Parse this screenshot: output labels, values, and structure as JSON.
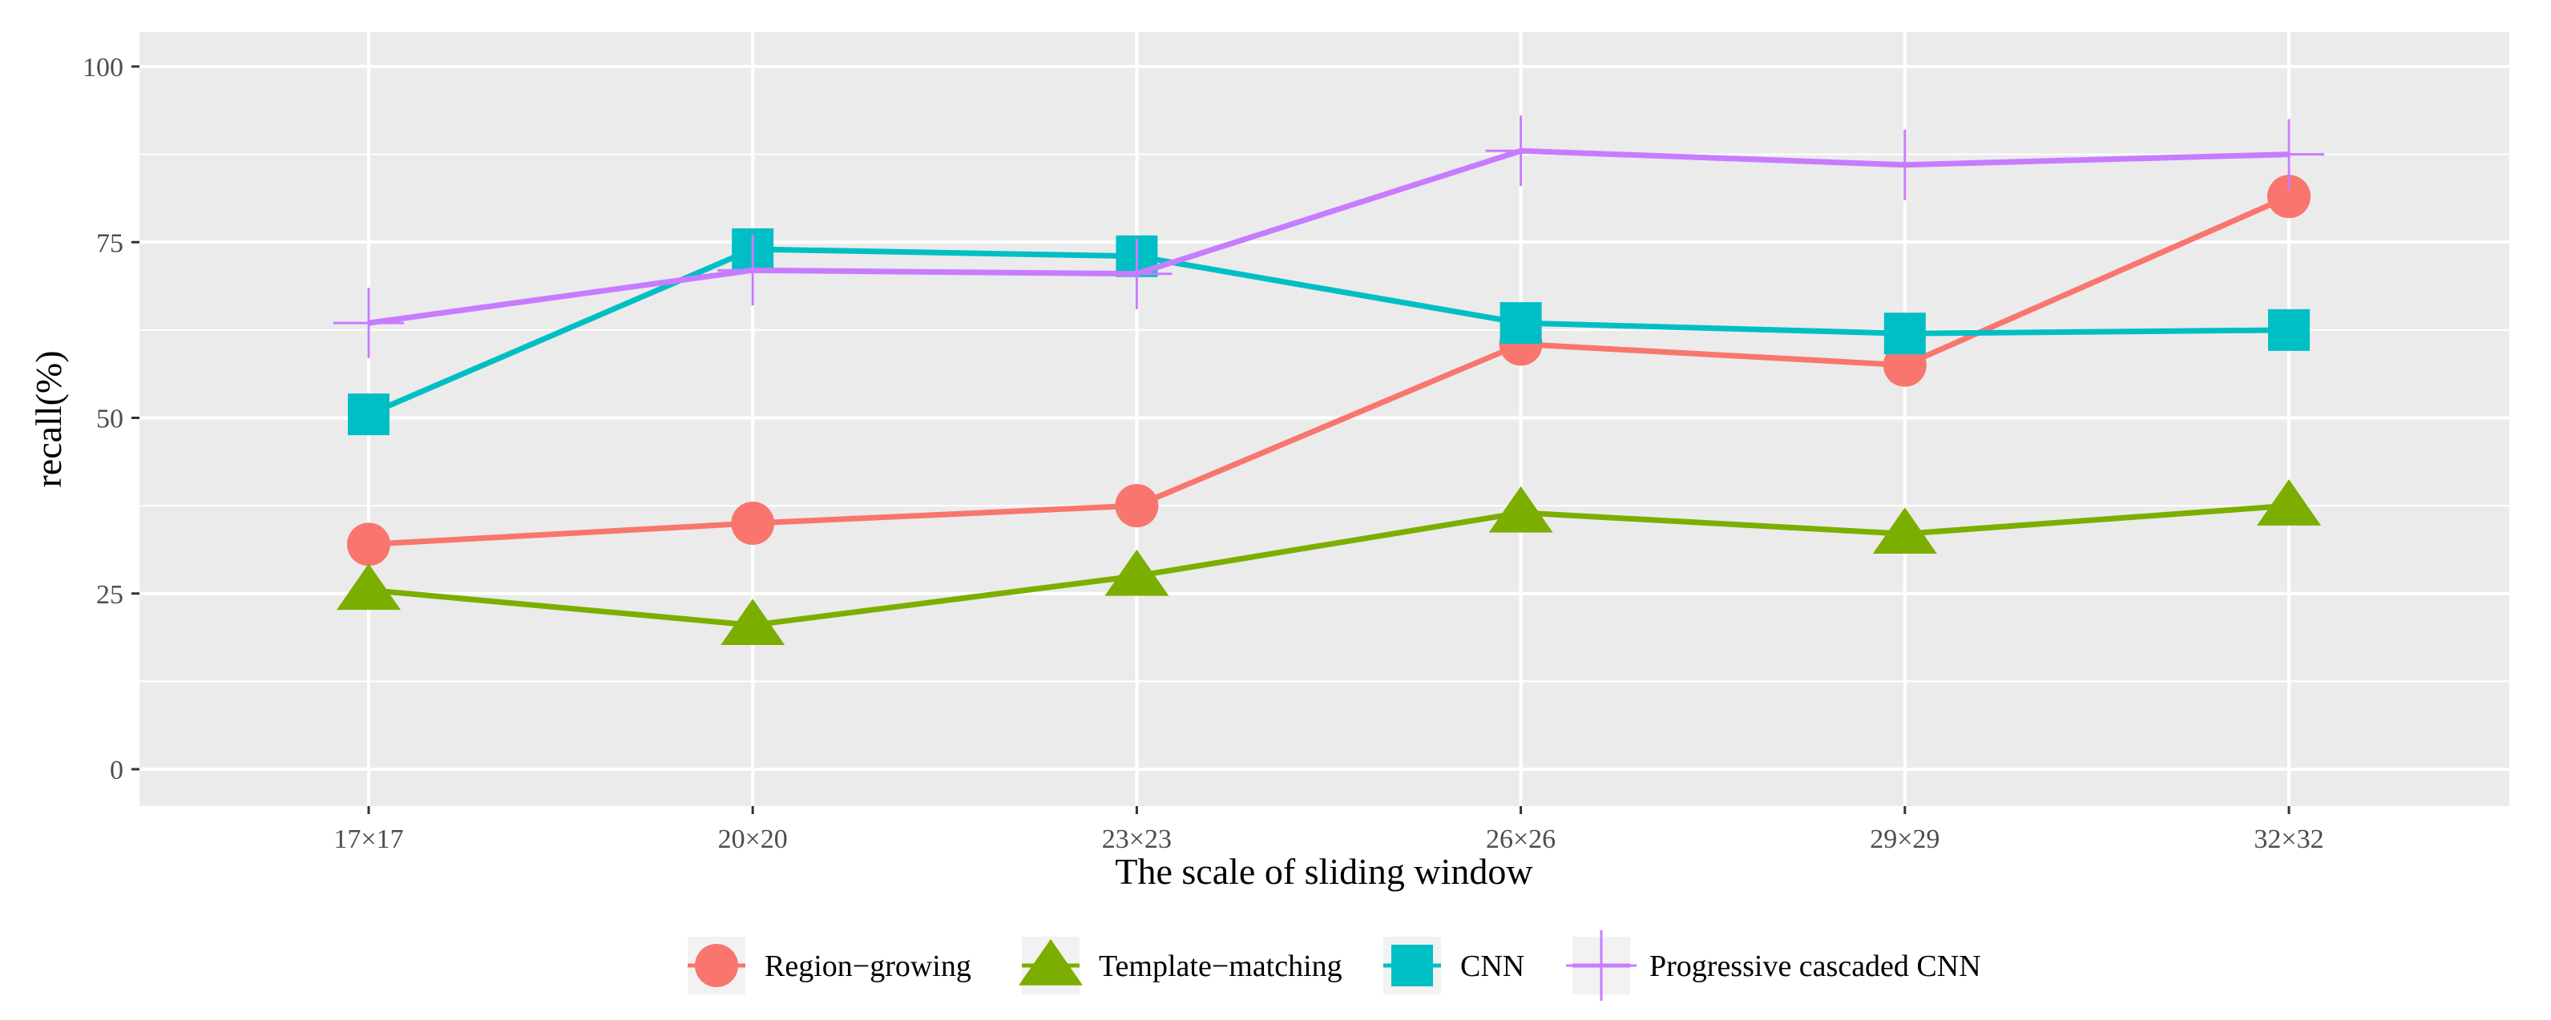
{
  "chart_data": {
    "type": "line",
    "title": "",
    "xlabel": "The scale of sliding window",
    "ylabel": "recall(%)",
    "categories": [
      "17×17",
      "20×20",
      "23×23",
      "26×26",
      "29×29",
      "32×32"
    ],
    "ylim": [
      0,
      100
    ],
    "yticks": [
      0,
      25,
      50,
      75,
      100
    ],
    "ytick_labels": [
      "0",
      "25",
      "50",
      "75",
      "100"
    ],
    "grid": true,
    "legend_position": "bottom",
    "series": [
      {
        "name": "Region−growing",
        "marker": "circle",
        "color": "#F8766D",
        "values": [
          32,
          35,
          37.5,
          60.5,
          57.5,
          81.5
        ]
      },
      {
        "name": "Template−matching",
        "marker": "triangle",
        "color": "#7CAE00",
        "values": [
          25.5,
          20.5,
          27.5,
          36.5,
          33.5,
          37.5
        ]
      },
      {
        "name": "CNN",
        "marker": "square",
        "color": "#00BFC4",
        "values": [
          50.5,
          74,
          73,
          63.5,
          62,
          62.5
        ]
      },
      {
        "name": "Progressive cascaded CNN",
        "marker": "plus",
        "color": "#C77CFF",
        "values": [
          63.5,
          71,
          70.5,
          88,
          86,
          87.5
        ]
      }
    ]
  }
}
